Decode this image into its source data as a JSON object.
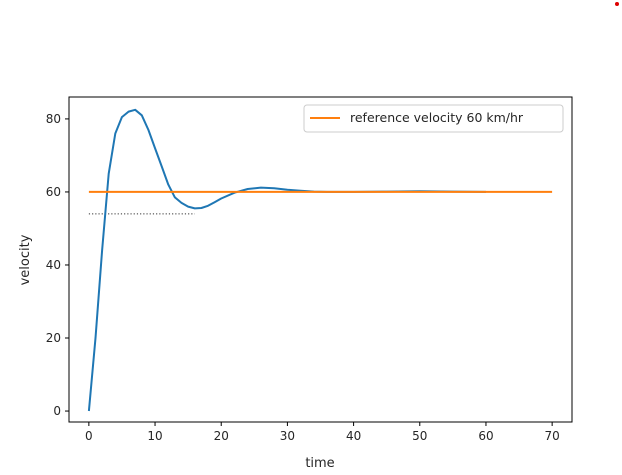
{
  "chart_data": {
    "type": "line",
    "title": "",
    "xlabel": "time",
    "ylabel": "velocity",
    "xlim": [
      -3,
      73
    ],
    "ylim": [
      -3,
      86
    ],
    "xticks": [
      0,
      10,
      20,
      30,
      40,
      50,
      60,
      70
    ],
    "yticks": [
      0,
      20,
      40,
      60,
      80
    ],
    "grid": false,
    "legend_position": "top-right",
    "series": [
      {
        "name": "",
        "color": "#1f77b4",
        "x": [
          0,
          1,
          2,
          3,
          4,
          5,
          6,
          7,
          8,
          9,
          10,
          11,
          12,
          13,
          14,
          15,
          16,
          17,
          18,
          19,
          20,
          22,
          24,
          26,
          28,
          30,
          32,
          34,
          36,
          38,
          40,
          45,
          50,
          55,
          60
        ],
        "y": [
          0,
          20,
          44,
          65,
          76,
          80.5,
          82,
          82.5,
          81,
          77,
          72,
          67,
          62,
          58.5,
          57,
          56,
          55.5,
          55.6,
          56.2,
          57.2,
          58.2,
          59.8,
          60.8,
          61.2,
          61.0,
          60.6,
          60.3,
          60.1,
          60.0,
          60.0,
          60.0,
          60.1,
          60.2,
          60.1,
          60.0
        ]
      },
      {
        "name": "reference velocity 60 km/hr",
        "color": "#ff7f0e",
        "x": [
          0,
          70
        ],
        "y": [
          60,
          60
        ]
      }
    ],
    "annotations": [
      {
        "type": "dotted-hline",
        "y": 54,
        "x_start": 0,
        "x_end": 16,
        "color": "#333333"
      }
    ]
  }
}
